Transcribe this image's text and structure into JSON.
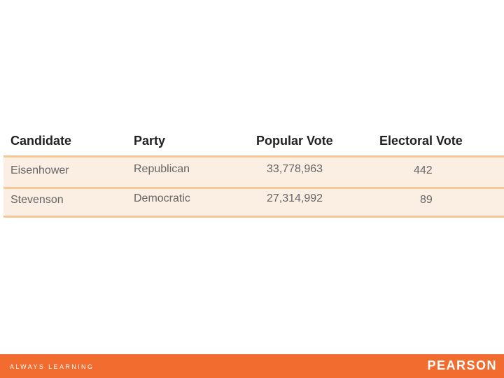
{
  "table": {
    "headers": [
      "Candidate",
      "Party",
      "Popular Vote",
      "Electoral Vote"
    ],
    "rows": [
      [
        "Eisenhower",
        "Republican",
        "33,778,963",
        "442"
      ],
      [
        "Stevenson",
        "Democratic",
        "27,314,992",
        "89"
      ]
    ]
  },
  "footer": {
    "tagline": "ALWAYS LEARNING",
    "brand": "PEARSON"
  },
  "colors": {
    "footer_bg": "#f26b2f",
    "row_bg": "#fbeee3",
    "row_border": "#f3c896"
  }
}
